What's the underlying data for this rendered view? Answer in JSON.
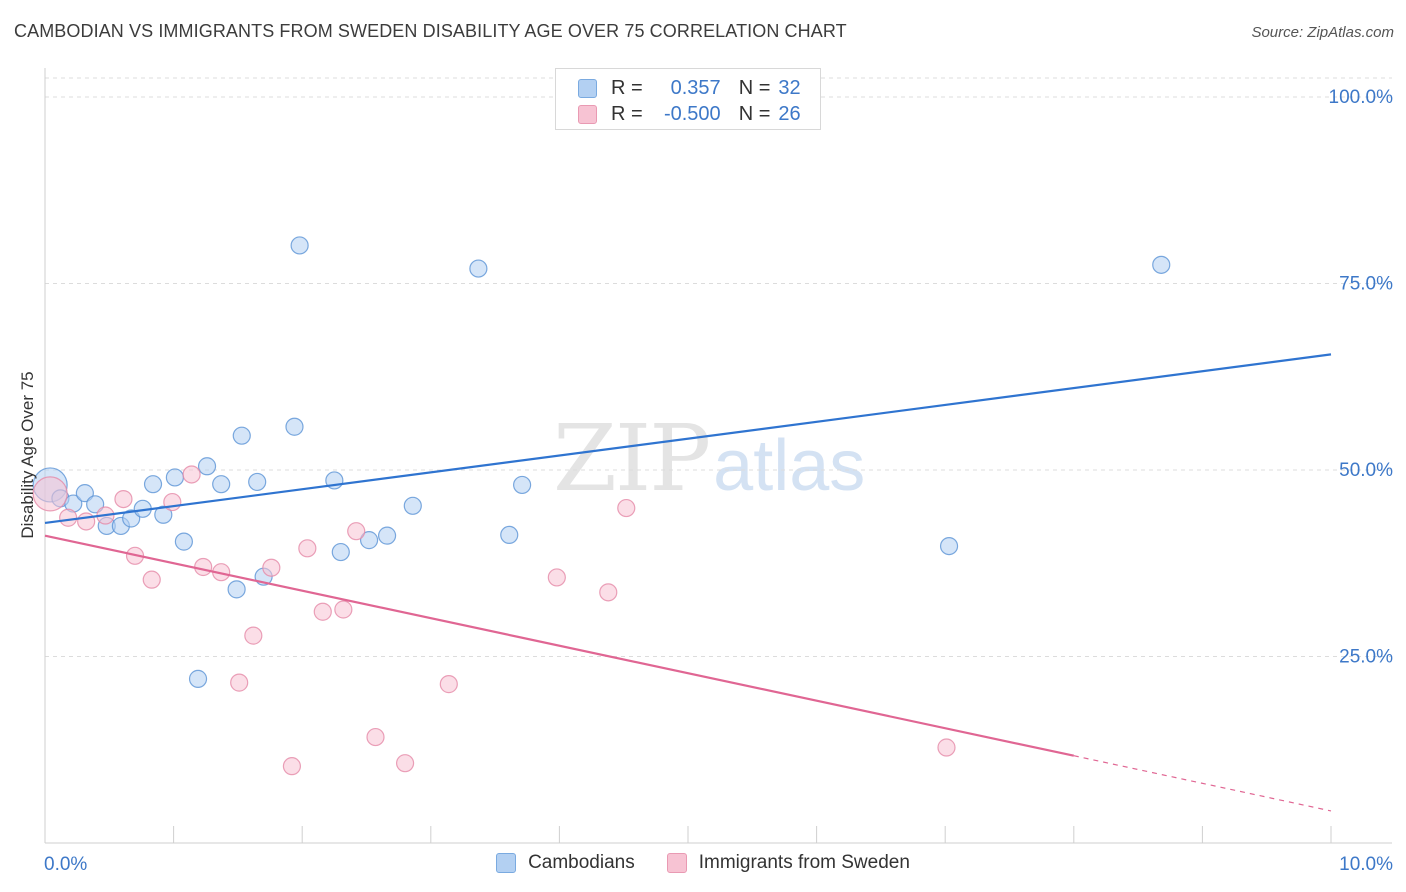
{
  "title": "CAMBODIAN VS IMMIGRANTS FROM SWEDEN DISABILITY AGE OVER 75 CORRELATION CHART",
  "source": "Source: ZipAtlas.com",
  "watermark": {
    "part1": "ZIP",
    "part2": "atlas"
  },
  "legend": {
    "rows": [
      {
        "r_label": "R =",
        "r_value": "0.357",
        "n_label": "N =",
        "n_value": "32",
        "color": "#b3d0f2",
        "border": "#7aaae0"
      },
      {
        "r_label": "R =",
        "r_value": "-0.500",
        "n_label": "N =",
        "n_value": "26",
        "color": "#f7c3d3",
        "border": "#e99ab3"
      }
    ],
    "bottom": [
      {
        "label": "Cambodians",
        "color": "#b3d0f2",
        "border": "#7aaae0"
      },
      {
        "label": "Immigrants from Sweden",
        "color": "#f7c3d3",
        "border": "#e99ab3"
      }
    ]
  },
  "chart_data": {
    "type": "scatter",
    "title": "CAMBODIAN VS IMMIGRANTS FROM SWEDEN DISABILITY AGE OVER 75 CORRELATION CHART",
    "xlabel": "",
    "ylabel": "Disability Age Over 75",
    "xlim": [
      0,
      10
    ],
    "ylim": [
      0,
      100
    ],
    "x_tick_labels": [
      {
        "value": 0,
        "label": "0.0%"
      },
      {
        "value": 10,
        "label": "10.0%"
      }
    ],
    "y_tick_labels": [
      {
        "value": 100,
        "label": "100.0%"
      },
      {
        "value": 75,
        "label": "75.0%"
      },
      {
        "value": 50,
        "label": "50.0%"
      },
      {
        "value": 25,
        "label": "25.0%"
      }
    ],
    "series": [
      {
        "name": "Cambodians",
        "color": "#5b93d6",
        "fill": "#b3d0f2",
        "line_color": "#2f74d0",
        "trend": {
          "x0": 0,
          "y0": 42.9,
          "x1": 10,
          "y1": 65.5
        },
        "points": [
          {
            "x": 0.04,
            "y": 48.0,
            "big": true
          },
          {
            "x": 0.12,
            "y": 46.2
          },
          {
            "x": 0.22,
            "y": 45.5
          },
          {
            "x": 0.31,
            "y": 46.9
          },
          {
            "x": 0.39,
            "y": 45.4
          },
          {
            "x": 0.48,
            "y": 42.5
          },
          {
            "x": 0.59,
            "y": 42.5
          },
          {
            "x": 0.67,
            "y": 43.5
          },
          {
            "x": 0.76,
            "y": 44.8
          },
          {
            "x": 0.84,
            "y": 48.1
          },
          {
            "x": 0.92,
            "y": 44.0
          },
          {
            "x": 1.01,
            "y": 49.0
          },
          {
            "x": 1.08,
            "y": 40.4
          },
          {
            "x": 1.19,
            "y": 22.0
          },
          {
            "x": 1.26,
            "y": 50.5
          },
          {
            "x": 1.37,
            "y": 48.1
          },
          {
            "x": 1.49,
            "y": 34.0
          },
          {
            "x": 1.53,
            "y": 54.6
          },
          {
            "x": 1.65,
            "y": 48.4
          },
          {
            "x": 1.7,
            "y": 35.7
          },
          {
            "x": 1.94,
            "y": 55.8
          },
          {
            "x": 1.98,
            "y": 80.1
          },
          {
            "x": 2.25,
            "y": 48.6
          },
          {
            "x": 2.3,
            "y": 39.0
          },
          {
            "x": 2.52,
            "y": 40.6
          },
          {
            "x": 2.66,
            "y": 41.2
          },
          {
            "x": 2.86,
            "y": 45.2
          },
          {
            "x": 3.37,
            "y": 77.0
          },
          {
            "x": 3.61,
            "y": 41.3
          },
          {
            "x": 3.71,
            "y": 48.0
          },
          {
            "x": 7.03,
            "y": 39.8
          },
          {
            "x": 8.68,
            "y": 77.5
          }
        ]
      },
      {
        "name": "Immigrants from Sweden",
        "color": "#e58aa8",
        "fill": "#f7c3d3",
        "line_color": "#e06693",
        "trend": {
          "x0": 0,
          "y0": 41.2,
          "x1": 8.0,
          "y1": 11.7
        },
        "trend_dashed": {
          "x0": 8.0,
          "y0": 11.7,
          "x1": 10,
          "y1": 4.3
        },
        "points": [
          {
            "x": 0.04,
            "y": 46.8,
            "big": true
          },
          {
            "x": 0.18,
            "y": 43.6
          },
          {
            "x": 0.32,
            "y": 43.1
          },
          {
            "x": 0.47,
            "y": 43.9
          },
          {
            "x": 0.61,
            "y": 46.1
          },
          {
            "x": 0.7,
            "y": 38.5
          },
          {
            "x": 0.83,
            "y": 35.3
          },
          {
            "x": 0.99,
            "y": 45.7
          },
          {
            "x": 1.14,
            "y": 49.4
          },
          {
            "x": 1.23,
            "y": 37.0
          },
          {
            "x": 1.37,
            "y": 36.3
          },
          {
            "x": 1.51,
            "y": 21.5
          },
          {
            "x": 1.62,
            "y": 27.8
          },
          {
            "x": 1.76,
            "y": 36.9
          },
          {
            "x": 1.92,
            "y": 10.3
          },
          {
            "x": 2.04,
            "y": 39.5
          },
          {
            "x": 2.16,
            "y": 31.0
          },
          {
            "x": 2.32,
            "y": 31.3
          },
          {
            "x": 2.42,
            "y": 41.8
          },
          {
            "x": 2.57,
            "y": 14.2
          },
          {
            "x": 2.8,
            "y": 10.7
          },
          {
            "x": 3.14,
            "y": 21.3
          },
          {
            "x": 3.98,
            "y": 35.6
          },
          {
            "x": 4.38,
            "y": 33.6
          },
          {
            "x": 4.52,
            "y": 44.9
          },
          {
            "x": 7.01,
            "y": 12.8
          }
        ]
      }
    ]
  }
}
